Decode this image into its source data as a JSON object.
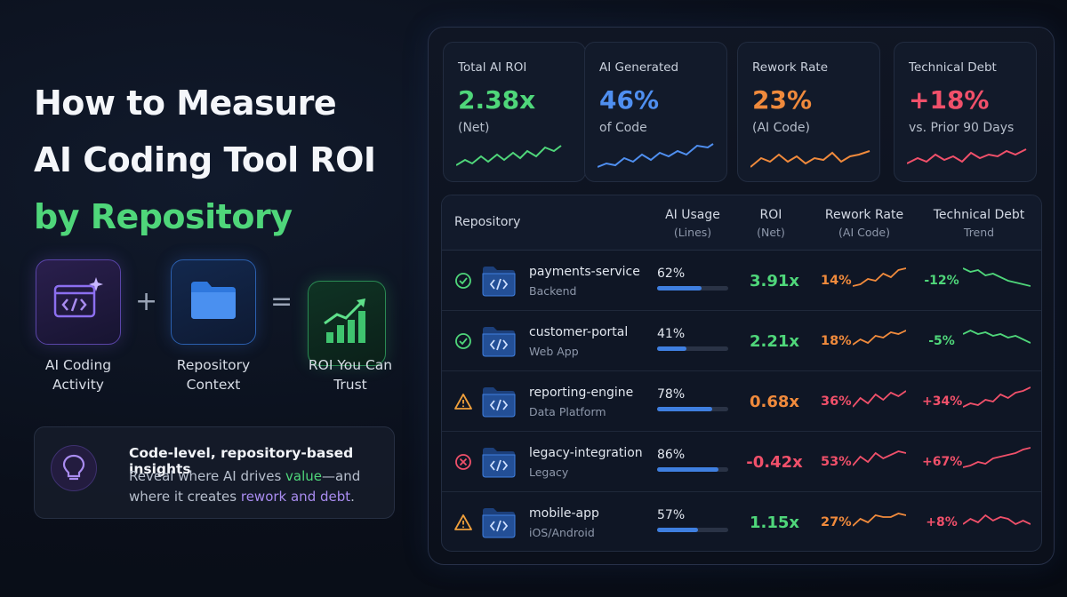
{
  "hero": {
    "title_line1": "How to Measure",
    "title_line2": "AI Coding Tool ROI",
    "title_line3": "by Repository"
  },
  "formula": {
    "item1_icon": "code-sparkle-icon",
    "item1_label": "AI Coding Activity",
    "plus": "+",
    "item2_icon": "folder-icon",
    "item2_label": "Repository Context",
    "equals": "=",
    "item3_icon": "growth-chart-icon",
    "item3_label": "ROI You Can Trust"
  },
  "insight": {
    "icon": "lightbulb-icon",
    "title": "Code-level, repository-based insights",
    "body_part1": "Reveal where AI drives ",
    "body_value": "value",
    "body_part2": "—and where it creates ",
    "body_rework": "rework and debt",
    "body_end": "."
  },
  "colors": {
    "green": "#4fd67a",
    "blue": "#4f8ff0",
    "orange": "#f08a3c",
    "red": "#f0506a",
    "purple": "#a98cf0"
  },
  "kpis": [
    {
      "label": "Total AI ROI",
      "value": "2.38x",
      "sub": "(Net)",
      "color": "#4fd67a"
    },
    {
      "label": "AI Generated",
      "value": "46%",
      "sub": "of Code",
      "color": "#4f8ff0"
    },
    {
      "label": "Rework Rate",
      "value": "23%",
      "sub": "(AI Code)",
      "color": "#f08a3c"
    },
    {
      "label": "Technical Debt",
      "value": "+18%",
      "sub": "vs. Prior 90 Days",
      "color": "#f0506a"
    }
  ],
  "table": {
    "headers": {
      "repository": "Repository",
      "usage": "AI Usage",
      "usage_sub": "(Lines)",
      "roi": "ROI",
      "roi_sub": "(Net)",
      "rework": "Rework Rate",
      "rework_sub": "(AI Code)",
      "debt": "Technical Debt",
      "debt_sub": "Trend"
    },
    "rows": [
      {
        "status": "check-icon",
        "name": "payments-service",
        "type": "Backend",
        "usage": "62%",
        "usage_fraction": 0.62,
        "roi": "3.91x",
        "roi_color": "#4fd67a",
        "rework": "14%",
        "rework_color": "#f08a3c",
        "debt": "-12%",
        "debt_color": "#4fd67a"
      },
      {
        "status": "check-icon",
        "name": "customer-portal",
        "type": "Web App",
        "usage": "41%",
        "usage_fraction": 0.41,
        "roi": "2.21x",
        "roi_color": "#4fd67a",
        "rework": "18%",
        "rework_color": "#f08a3c",
        "debt": "-5%",
        "debt_color": "#4fd67a"
      },
      {
        "status": "warning-icon",
        "name": "reporting-engine",
        "type": "Data Platform",
        "usage": "78%",
        "usage_fraction": 0.78,
        "roi": "0.68x",
        "roi_color": "#f08a3c",
        "rework": "36%",
        "rework_color": "#f0506a",
        "debt": "+34%",
        "debt_color": "#f0506a"
      },
      {
        "status": "error-icon",
        "name": "legacy-integration",
        "type": "Legacy",
        "usage": "86%",
        "usage_fraction": 0.86,
        "roi": "-0.42x",
        "roi_color": "#f0506a",
        "rework": "53%",
        "rework_color": "#f0506a",
        "debt": "+67%",
        "debt_color": "#f0506a"
      },
      {
        "status": "warning-icon",
        "name": "mobile-app",
        "type": "iOS/Android",
        "usage": "57%",
        "usage_fraction": 0.57,
        "roi": "1.15x",
        "roi_color": "#4fd67a",
        "rework": "27%",
        "rework_color": "#f08a3c",
        "debt": "+8%",
        "debt_color": "#f0506a"
      }
    ]
  }
}
